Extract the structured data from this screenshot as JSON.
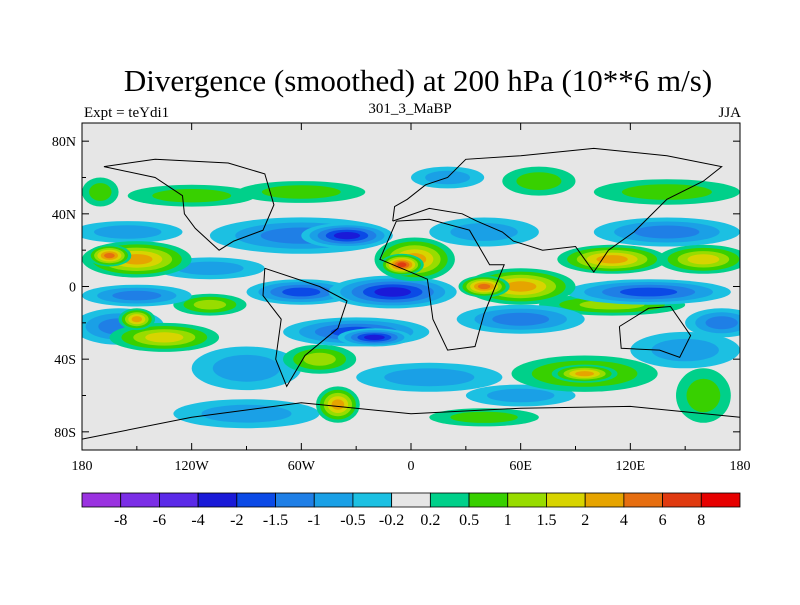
{
  "chart_data": {
    "type": "heatmap",
    "title": "Divergence (smoothed) at 200 hPa (10**6 m/s)",
    "left_label": "Expt = teYdi1",
    "center_label": "301_3_MaBP",
    "right_label": "JJA",
    "x_ticks": [
      "180",
      "120W",
      "60W",
      "0",
      "60E",
      "120E",
      "180"
    ],
    "x_tick_values": [
      -180,
      -120,
      -60,
      0,
      60,
      120,
      180
    ],
    "y_ticks": [
      "80N",
      "40N",
      "0",
      "40S",
      "80S"
    ],
    "y_tick_values": [
      80,
      40,
      0,
      -40,
      -80
    ],
    "xlim": [
      -180,
      180
    ],
    "ylim": [
      -90,
      90
    ],
    "colorbar": {
      "labels": [
        "-8",
        "-6",
        "-4",
        "-2",
        "-1.5",
        "-1",
        "-0.5",
        "-0.2",
        "0.2",
        "0.5",
        "1",
        "1.5",
        "2",
        "4",
        "6",
        "8"
      ],
      "colors": [
        "#9a32e0",
        "#7b2ee6",
        "#5b2ae8",
        "#1a1ad8",
        "#0b4ae6",
        "#1f7fe6",
        "#1aa0e6",
        "#1cc0e2",
        "#e6e6e6",
        "#00d08a",
        "#38d000",
        "#98dc00",
        "#d8d400",
        "#e6a400",
        "#e66e10",
        "#e03a10",
        "#e60000"
      ]
    },
    "field_blobs": [
      {
        "lon": -170,
        "lat": 52,
        "rx": 10,
        "ry": 8,
        "v": 0.6
      },
      {
        "lon": -120,
        "lat": 50,
        "rx": 35,
        "ry": 6,
        "v": 0.8
      },
      {
        "lon": -60,
        "lat": 52,
        "rx": 35,
        "ry": 6,
        "v": 0.7
      },
      {
        "lon": 140,
        "lat": 52,
        "rx": 40,
        "ry": 7,
        "v": 0.8
      },
      {
        "lon": 70,
        "lat": 58,
        "rx": 20,
        "ry": 8,
        "v": 0.6
      },
      {
        "lon": -150,
        "lat": 15,
        "rx": 30,
        "ry": 10,
        "v": 2.2
      },
      {
        "lon": -165,
        "lat": 17,
        "rx": 12,
        "ry": 6,
        "v": 4.0
      },
      {
        "lon": 2,
        "lat": 15,
        "rx": 22,
        "ry": 12,
        "v": 2.6
      },
      {
        "lon": -5,
        "lat": 12,
        "rx": 12,
        "ry": 6,
        "v": 6.0
      },
      {
        "lon": 60,
        "lat": 0,
        "rx": 30,
        "ry": 10,
        "v": 2.6
      },
      {
        "lon": 40,
        "lat": 0,
        "rx": 14,
        "ry": 6,
        "v": 4.5
      },
      {
        "lon": 110,
        "lat": 15,
        "rx": 30,
        "ry": 8,
        "v": 2.2
      },
      {
        "lon": 160,
        "lat": 15,
        "rx": 25,
        "ry": 8,
        "v": 1.8
      },
      {
        "lon": 110,
        "lat": -10,
        "rx": 40,
        "ry": 6,
        "v": 1.4
      },
      {
        "lon": -135,
        "lat": -28,
        "rx": 30,
        "ry": 8,
        "v": 1.6
      },
      {
        "lon": -150,
        "lat": -18,
        "rx": 10,
        "ry": 6,
        "v": 2.2
      },
      {
        "lon": -110,
        "lat": -10,
        "rx": 20,
        "ry": 6,
        "v": 1.2
      },
      {
        "lon": -50,
        "lat": -40,
        "rx": 20,
        "ry": 8,
        "v": 1.2
      },
      {
        "lon": -40,
        "lat": -65,
        "rx": 12,
        "ry": 10,
        "v": 2.5
      },
      {
        "lon": 95,
        "lat": -48,
        "rx": 40,
        "ry": 10,
        "v": 1.4
      },
      {
        "lon": 95,
        "lat": -48,
        "rx": 18,
        "ry": 5,
        "v": 2.4
      },
      {
        "lon": 40,
        "lat": -72,
        "rx": 30,
        "ry": 5,
        "v": 0.7
      },
      {
        "lon": 160,
        "lat": -60,
        "rx": 15,
        "ry": 15,
        "v": 0.8
      },
      {
        "lon": -60,
        "lat": 28,
        "rx": 50,
        "ry": 10,
        "v": -1.2
      },
      {
        "lon": -35,
        "lat": 28,
        "rx": 25,
        "ry": 7,
        "v": -2.8
      },
      {
        "lon": 40,
        "lat": 30,
        "rx": 30,
        "ry": 8,
        "v": -1.0
      },
      {
        "lon": 140,
        "lat": 30,
        "rx": 40,
        "ry": 8,
        "v": -1.1
      },
      {
        "lon": -155,
        "lat": 30,
        "rx": 30,
        "ry": 6,
        "v": -0.6
      },
      {
        "lon": -10,
        "lat": -3,
        "rx": 35,
        "ry": 9,
        "v": -2.5
      },
      {
        "lon": -60,
        "lat": -3,
        "rx": 30,
        "ry": 7,
        "v": -1.8
      },
      {
        "lon": 130,
        "lat": -3,
        "rx": 45,
        "ry": 7,
        "v": -1.6
      },
      {
        "lon": -150,
        "lat": -5,
        "rx": 30,
        "ry": 6,
        "v": -1.2
      },
      {
        "lon": -110,
        "lat": 10,
        "rx": 30,
        "ry": 6,
        "v": -1.0
      },
      {
        "lon": 60,
        "lat": -18,
        "rx": 35,
        "ry": 8,
        "v": -1.4
      },
      {
        "lon": -30,
        "lat": -25,
        "rx": 40,
        "ry": 8,
        "v": -1.8
      },
      {
        "lon": -20,
        "lat": -28,
        "rx": 20,
        "ry": 5,
        "v": -3.0
      },
      {
        "lon": -160,
        "lat": -22,
        "rx": 25,
        "ry": 10,
        "v": -1.2
      },
      {
        "lon": -90,
        "lat": -45,
        "rx": 30,
        "ry": 12,
        "v": -1.0
      },
      {
        "lon": 10,
        "lat": -50,
        "rx": 40,
        "ry": 8,
        "v": -0.9
      },
      {
        "lon": 150,
        "lat": -35,
        "rx": 30,
        "ry": 10,
        "v": -1.0
      },
      {
        "lon": 170,
        "lat": -20,
        "rx": 20,
        "ry": 8,
        "v": -1.3
      },
      {
        "lon": -90,
        "lat": -70,
        "rx": 40,
        "ry": 8,
        "v": -0.7
      },
      {
        "lon": 60,
        "lat": -60,
        "rx": 30,
        "ry": 6,
        "v": -0.7
      },
      {
        "lon": 20,
        "lat": 60,
        "rx": 20,
        "ry": 6,
        "v": -0.6
      }
    ]
  }
}
